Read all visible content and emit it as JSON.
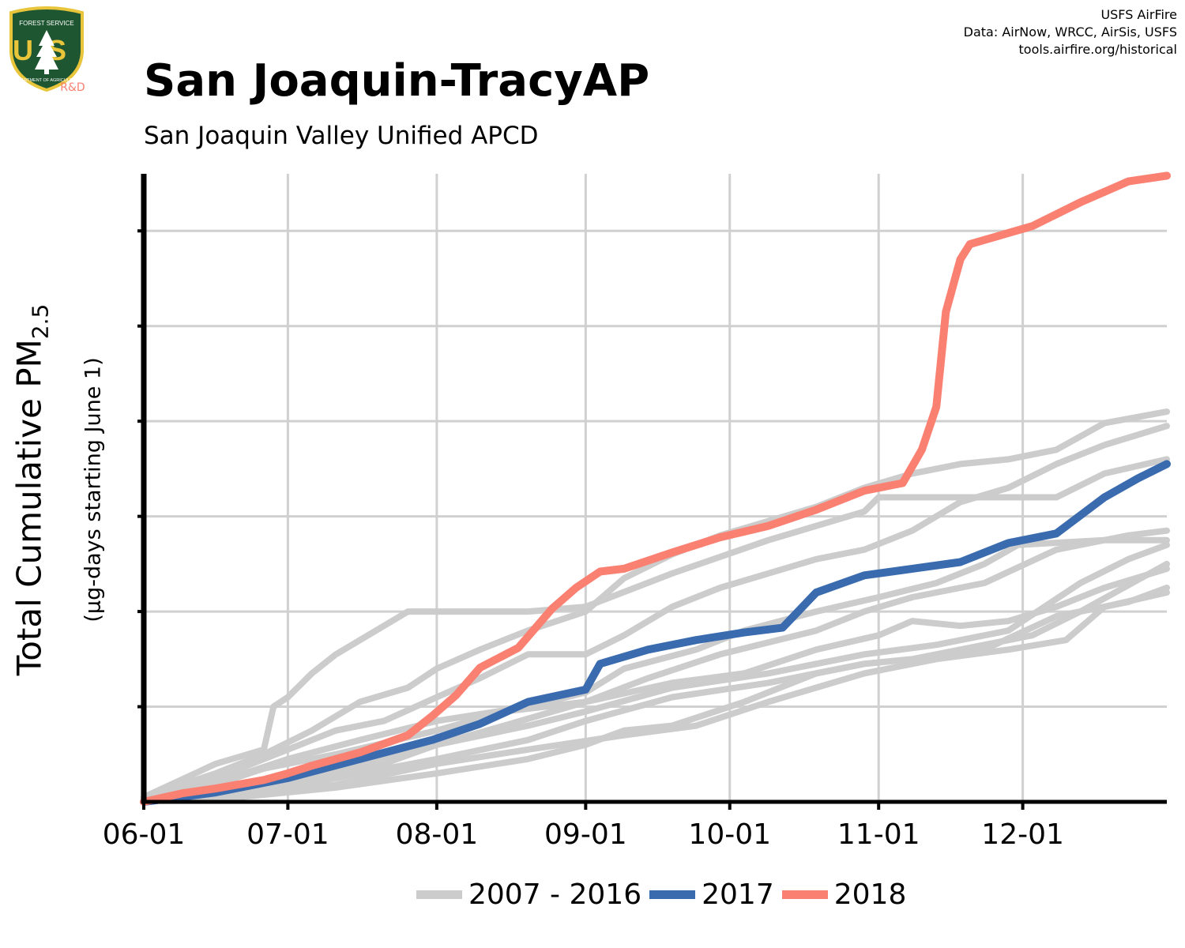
{
  "header": {
    "title": "San Joaquin-TracyAP",
    "subtitle": "San Joaquin Valley Unified APCD",
    "credits": [
      "USFS AirFire",
      "Data: AirNow, WRCC, AirSis, USFS",
      "tools.airfire.org/historical"
    ]
  },
  "logo": {
    "text_top": "FOREST SERVICE",
    "text_main": "US",
    "text_bottom": "DEPARTMENT OF AGRICULTURE",
    "text_rd": "R&D",
    "colors": {
      "shield": "#1e5631",
      "border": "#e8c53a",
      "rd": "#fa8072"
    }
  },
  "axes": {
    "ylabel_main": "Total Cumulative PM",
    "ylabel_sub_script": "2.5",
    "ylabel_secondary": "(µg-days starting June 1)"
  },
  "legend": [
    {
      "label": "2007 - 2016",
      "color": "#cccccc"
    },
    {
      "label": "2017",
      "color": "#3a6baf"
    },
    {
      "label": "2018",
      "color": "#fa8072"
    }
  ],
  "chart_data": {
    "type": "line",
    "x_axis": {
      "ticks": [
        "06-01",
        "07-01",
        "08-01",
        "09-01",
        "10-01",
        "11-01",
        "12-01"
      ],
      "tick_days": [
        0,
        30,
        61,
        92,
        122,
        153,
        183
      ],
      "xlim_days": [
        0,
        213
      ]
    },
    "y_axis": {
      "tick_labels_shown": false,
      "note": "y tick labels not printed; values in relative units where 1 gridline step = 1",
      "ylim": [
        0,
        6.6
      ],
      "gridlines": [
        1,
        2,
        3,
        4,
        5,
        6
      ]
    },
    "grid": true,
    "legend_position": "bottom",
    "series": [
      {
        "name": "2018",
        "color": "#fa8072",
        "group": "2018",
        "points": [
          [
            0,
            0
          ],
          [
            8,
            0.09
          ],
          [
            15,
            0.14
          ],
          [
            25,
            0.23
          ],
          [
            30,
            0.3
          ],
          [
            35,
            0.38
          ],
          [
            45,
            0.52
          ],
          [
            55,
            0.7
          ],
          [
            60,
            0.9
          ],
          [
            65,
            1.12
          ],
          [
            70,
            1.41
          ],
          [
            78,
            1.62
          ],
          [
            85,
            2.03
          ],
          [
            90,
            2.25
          ],
          [
            95,
            2.42
          ],
          [
            100,
            2.45
          ],
          [
            110,
            2.62
          ],
          [
            120,
            2.78
          ],
          [
            130,
            2.9
          ],
          [
            140,
            3.07
          ],
          [
            150,
            3.27
          ],
          [
            158,
            3.35
          ],
          [
            162,
            3.7
          ],
          [
            165,
            4.15
          ],
          [
            167,
            5.15
          ],
          [
            170,
            5.7
          ],
          [
            172,
            5.86
          ],
          [
            185,
            6.05
          ],
          [
            195,
            6.3
          ],
          [
            205,
            6.52
          ],
          [
            213,
            6.58
          ]
        ]
      },
      {
        "name": "2017",
        "color": "#3a6baf",
        "group": "2017",
        "points": [
          [
            0,
            0
          ],
          [
            15,
            0.1
          ],
          [
            30,
            0.25
          ],
          [
            45,
            0.45
          ],
          [
            60,
            0.65
          ],
          [
            70,
            0.82
          ],
          [
            80,
            1.05
          ],
          [
            92,
            1.18
          ],
          [
            95,
            1.45
          ],
          [
            105,
            1.6
          ],
          [
            115,
            1.7
          ],
          [
            125,
            1.78
          ],
          [
            133,
            1.83
          ],
          [
            140,
            2.2
          ],
          [
            150,
            2.38
          ],
          [
            160,
            2.45
          ],
          [
            170,
            2.52
          ],
          [
            180,
            2.72
          ],
          [
            190,
            2.82
          ],
          [
            200,
            3.2
          ],
          [
            207,
            3.4
          ],
          [
            213,
            3.55
          ]
        ]
      },
      {
        "group": "2007-2016",
        "color": "#cccccc",
        "points": [
          [
            0,
            0.05
          ],
          [
            15,
            0.4
          ],
          [
            25,
            0.55
          ],
          [
            27,
            1.0
          ],
          [
            30,
            1.1
          ],
          [
            35,
            1.35
          ],
          [
            40,
            1.55
          ],
          [
            50,
            1.85
          ],
          [
            55,
            2.0
          ],
          [
            61,
            2.0
          ],
          [
            80,
            2.0
          ],
          [
            92,
            2.05
          ],
          [
            110,
            2.4
          ],
          [
            130,
            2.75
          ],
          [
            150,
            3.05
          ],
          [
            153,
            3.2
          ],
          [
            170,
            3.2
          ],
          [
            180,
            3.2
          ],
          [
            190,
            3.2
          ],
          [
            200,
            3.45
          ],
          [
            213,
            3.6
          ]
        ]
      },
      {
        "group": "2007-2016",
        "color": "#cccccc",
        "points": [
          [
            0,
            0.05
          ],
          [
            15,
            0.3
          ],
          [
            25,
            0.5
          ],
          [
            35,
            0.75
          ],
          [
            45,
            1.05
          ],
          [
            55,
            1.2
          ],
          [
            61,
            1.4
          ],
          [
            70,
            1.6
          ],
          [
            80,
            1.8
          ],
          [
            92,
            2.0
          ],
          [
            100,
            2.35
          ],
          [
            110,
            2.6
          ],
          [
            120,
            2.8
          ],
          [
            130,
            2.95
          ],
          [
            140,
            3.1
          ],
          [
            150,
            3.3
          ],
          [
            160,
            3.45
          ],
          [
            170,
            3.55
          ],
          [
            180,
            3.6
          ],
          [
            190,
            3.7
          ],
          [
            200,
            3.98
          ],
          [
            213,
            4.1
          ]
        ]
      },
      {
        "group": "2007-2016",
        "color": "#cccccc",
        "points": [
          [
            0,
            0.02
          ],
          [
            15,
            0.25
          ],
          [
            30,
            0.55
          ],
          [
            40,
            0.75
          ],
          [
            50,
            0.85
          ],
          [
            61,
            1.1
          ],
          [
            70,
            1.3
          ],
          [
            80,
            1.55
          ],
          [
            92,
            1.55
          ],
          [
            100,
            1.75
          ],
          [
            110,
            2.05
          ],
          [
            120,
            2.25
          ],
          [
            130,
            2.4
          ],
          [
            140,
            2.55
          ],
          [
            150,
            2.65
          ],
          [
            160,
            2.85
          ],
          [
            170,
            3.15
          ],
          [
            180,
            3.3
          ],
          [
            190,
            3.55
          ],
          [
            200,
            3.75
          ],
          [
            213,
            3.95
          ]
        ]
      },
      {
        "group": "2007-2016",
        "color": "#cccccc",
        "points": [
          [
            0,
            0.02
          ],
          [
            20,
            0.15
          ],
          [
            40,
            0.35
          ],
          [
            61,
            0.6
          ],
          [
            80,
            0.8
          ],
          [
            92,
            0.95
          ],
          [
            110,
            1.2
          ],
          [
            130,
            1.35
          ],
          [
            150,
            1.55
          ],
          [
            165,
            1.65
          ],
          [
            180,
            1.8
          ],
          [
            195,
            2.3
          ],
          [
            205,
            2.55
          ],
          [
            213,
            2.7
          ]
        ]
      },
      {
        "group": "2007-2016",
        "color": "#cccccc",
        "points": [
          [
            0,
            0.02
          ],
          [
            15,
            0.1
          ],
          [
            30,
            0.2
          ],
          [
            50,
            0.4
          ],
          [
            61,
            0.6
          ],
          [
            75,
            0.8
          ],
          [
            92,
            1.05
          ],
          [
            105,
            1.3
          ],
          [
            120,
            1.55
          ],
          [
            140,
            1.8
          ],
          [
            150,
            2.0
          ],
          [
            160,
            2.15
          ],
          [
            175,
            2.3
          ],
          [
            190,
            2.65
          ],
          [
            205,
            2.8
          ],
          [
            213,
            2.85
          ]
        ]
      },
      {
        "group": "2007-2016",
        "color": "#cccccc",
        "points": [
          [
            0,
            0.01
          ],
          [
            20,
            0.1
          ],
          [
            40,
            0.25
          ],
          [
            61,
            0.45
          ],
          [
            80,
            0.65
          ],
          [
            92,
            0.85
          ],
          [
            110,
            1.1
          ],
          [
            130,
            1.25
          ],
          [
            150,
            1.45
          ],
          [
            160,
            1.5
          ],
          [
            175,
            1.6
          ],
          [
            190,
            1.95
          ],
          [
            205,
            2.1
          ],
          [
            213,
            2.25
          ]
        ]
      },
      {
        "group": "2007-2016",
        "color": "#cccccc",
        "points": [
          [
            0,
            0.01
          ],
          [
            20,
            0.08
          ],
          [
            40,
            0.18
          ],
          [
            61,
            0.4
          ],
          [
            80,
            0.55
          ],
          [
            100,
            0.7
          ],
          [
            115,
            0.8
          ],
          [
            130,
            1.05
          ],
          [
            150,
            1.35
          ],
          [
            165,
            1.5
          ],
          [
            180,
            1.6
          ],
          [
            192,
            1.7
          ],
          [
            200,
            2.05
          ],
          [
            213,
            2.2
          ]
        ]
      },
      {
        "group": "2007-2016",
        "color": "#cccccc",
        "points": [
          [
            0,
            0.01
          ],
          [
            20,
            0.05
          ],
          [
            40,
            0.15
          ],
          [
            61,
            0.3
          ],
          [
            80,
            0.45
          ],
          [
            92,
            0.6
          ],
          [
            100,
            0.75
          ],
          [
            110,
            0.8
          ],
          [
            125,
            1.05
          ],
          [
            140,
            1.35
          ],
          [
            150,
            1.45
          ],
          [
            160,
            1.5
          ],
          [
            175,
            1.65
          ],
          [
            185,
            1.75
          ],
          [
            195,
            2.0
          ],
          [
            213,
            2.5
          ]
        ]
      },
      {
        "group": "2007-2016",
        "color": "#cccccc",
        "points": [
          [
            0,
            0.02
          ],
          [
            15,
            0.2
          ],
          [
            30,
            0.45
          ],
          [
            45,
            0.65
          ],
          [
            61,
            0.85
          ],
          [
            80,
            1.0
          ],
          [
            92,
            1.15
          ],
          [
            100,
            1.4
          ],
          [
            115,
            1.6
          ],
          [
            125,
            1.8
          ],
          [
            140,
            2.0
          ],
          [
            153,
            2.15
          ],
          [
            165,
            2.3
          ],
          [
            175,
            2.5
          ],
          [
            182,
            2.7
          ],
          [
            200,
            2.75
          ],
          [
            213,
            2.75
          ]
        ]
      },
      {
        "group": "2007-2016",
        "color": "#cccccc",
        "points": [
          [
            0,
            0.02
          ],
          [
            10,
            0.1
          ],
          [
            25,
            0.35
          ],
          [
            40,
            0.5
          ],
          [
            61,
            0.75
          ],
          [
            75,
            0.95
          ],
          [
            92,
            1.05
          ],
          [
            110,
            1.25
          ],
          [
            125,
            1.35
          ],
          [
            140,
            1.6
          ],
          [
            153,
            1.75
          ],
          [
            160,
            1.9
          ],
          [
            170,
            1.85
          ],
          [
            180,
            1.9
          ],
          [
            190,
            2.05
          ],
          [
            200,
            2.25
          ],
          [
            213,
            2.45
          ]
        ]
      }
    ]
  }
}
